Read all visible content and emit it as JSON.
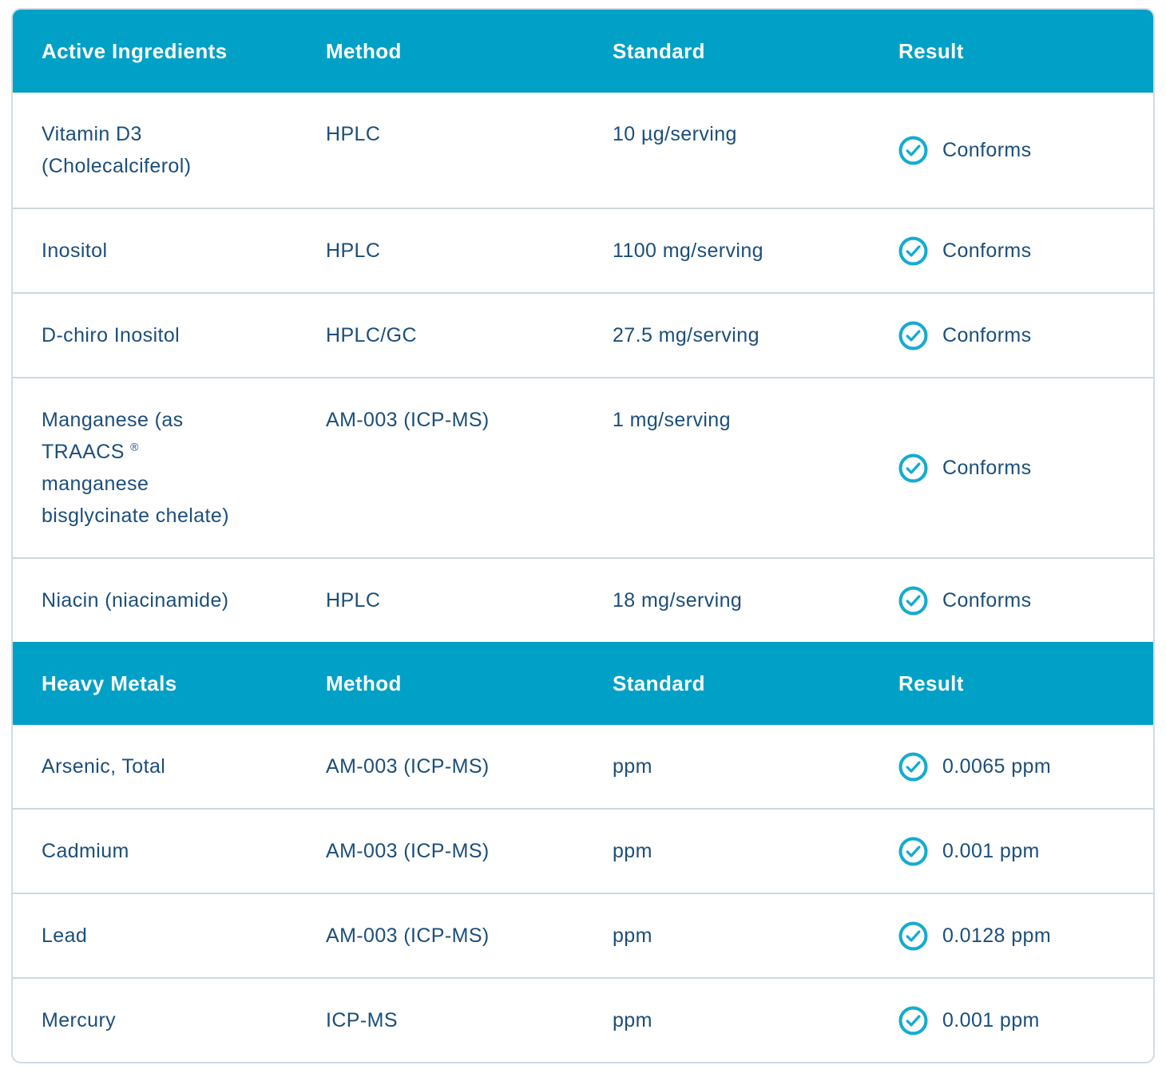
{
  "colors": {
    "header_background": "#00A0C7",
    "header_text": "#FFFFFF",
    "body_text": "#1B4E7B",
    "check_icon": "#14ABD1",
    "row_divider": "#CCD8E2",
    "card_border": "#D3DBE2"
  },
  "table": {
    "sections": [
      {
        "columns": [
          "Active Ingredients",
          "Method",
          "Standard",
          "Result"
        ],
        "rows": [
          {
            "name": "Vitamin D3\n(Cholecalciferol)",
            "method": "HPLC",
            "standard": "10 µg/serving",
            "result": "Conforms"
          },
          {
            "name": "Inositol",
            "method": "HPLC",
            "standard": "1100 mg/serving",
            "result": "Conforms"
          },
          {
            "name": "D-chiro Inositol",
            "method": "HPLC/GC",
            "standard": "27.5 mg/serving",
            "result": "Conforms"
          },
          {
            "name": "Manganese (as\nTRAACS ®\nmanganese\nbisglycinate chelate)",
            "method": "AM-003 (ICP-MS)",
            "standard": "1 mg/serving",
            "result": "Conforms"
          },
          {
            "name": "Niacin (niacinamide)",
            "method": "HPLC",
            "standard": "18 mg/serving",
            "result": "Conforms"
          }
        ]
      },
      {
        "columns": [
          "Heavy Metals",
          "Method",
          "Standard",
          "Result"
        ],
        "rows": [
          {
            "name": "Arsenic, Total",
            "method": "AM-003 (ICP-MS)",
            "standard": "ppm",
            "result": "0.0065 ppm"
          },
          {
            "name": "Cadmium",
            "method": "AM-003 (ICP-MS)",
            "standard": "ppm",
            "result": "0.001 ppm"
          },
          {
            "name": "Lead",
            "method": "AM-003 (ICP-MS)",
            "standard": "ppm",
            "result": "0.0128 ppm"
          },
          {
            "name": "Mercury",
            "method": "ICP-MS",
            "standard": "ppm",
            "result": "0.001 ppm"
          }
        ]
      }
    ]
  },
  "icons": {
    "result_status": "check-circle-icon"
  }
}
